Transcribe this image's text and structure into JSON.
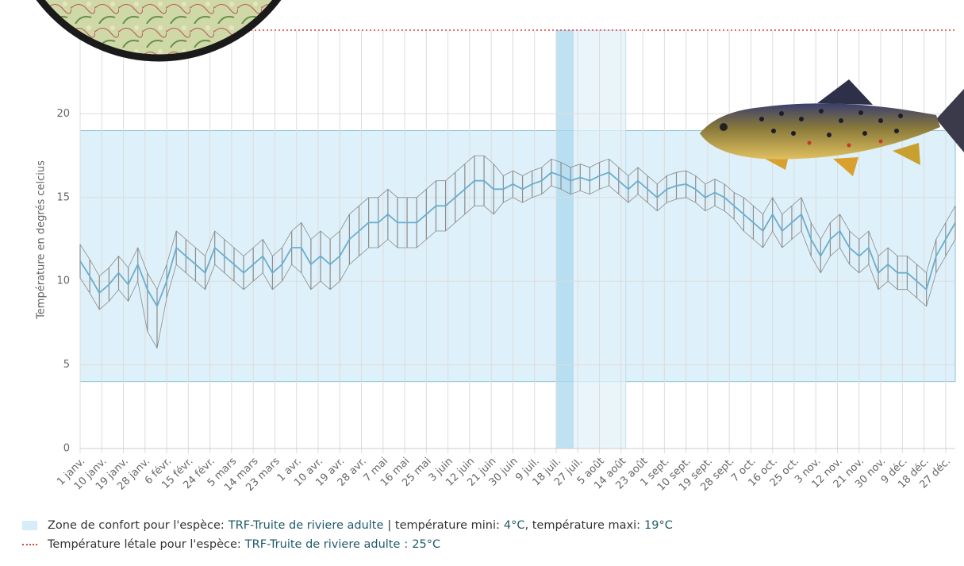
{
  "chart_data": {
    "type": "line",
    "y_label": "Température en degrés celcius",
    "xlim": [
      0,
      364
    ],
    "ylim": [
      0,
      25
    ],
    "yticks": [
      0,
      5,
      10,
      15,
      20
    ],
    "grid": true,
    "xticks": [
      {
        "value": 0,
        "label": "1 janv."
      },
      {
        "value": 9,
        "label": "10 janv."
      },
      {
        "value": 18,
        "label": "19 janv."
      },
      {
        "value": 27,
        "label": "28 janv."
      },
      {
        "value": 36,
        "label": "6 févr."
      },
      {
        "value": 45,
        "label": "15 févr."
      },
      {
        "value": 54,
        "label": "24 févr."
      },
      {
        "value": 63,
        "label": "5 mars"
      },
      {
        "value": 72,
        "label": "14 mars"
      },
      {
        "value": 81,
        "label": "23 mars"
      },
      {
        "value": 90,
        "label": "1 avr."
      },
      {
        "value": 99,
        "label": "10 avr."
      },
      {
        "value": 108,
        "label": "19 avr."
      },
      {
        "value": 117,
        "label": "28 avr."
      },
      {
        "value": 126,
        "label": "7 mai"
      },
      {
        "value": 135,
        "label": "16 mai"
      },
      {
        "value": 144,
        "label": "25 mai"
      },
      {
        "value": 153,
        "label": "3 juin"
      },
      {
        "value": 162,
        "label": "12 juin"
      },
      {
        "value": 171,
        "label": "21 juin"
      },
      {
        "value": 180,
        "label": "30 juin"
      },
      {
        "value": 189,
        "label": "9 juil."
      },
      {
        "value": 198,
        "label": "18 juil."
      },
      {
        "value": 207,
        "label": "27 juil."
      },
      {
        "value": 216,
        "label": "5 août"
      },
      {
        "value": 225,
        "label": "14 août"
      },
      {
        "value": 234,
        "label": "23 août"
      },
      {
        "value": 243,
        "label": "1 sept."
      },
      {
        "value": 252,
        "label": "10 sept."
      },
      {
        "value": 261,
        "label": "19 sept."
      },
      {
        "value": 270,
        "label": "28 sept."
      },
      {
        "value": 279,
        "label": "7 oct."
      },
      {
        "value": 288,
        "label": "16 oct."
      },
      {
        "value": 297,
        "label": "25 oct."
      },
      {
        "value": 306,
        "label": "3 nov."
      },
      {
        "value": 315,
        "label": "12 nov."
      },
      {
        "value": 324,
        "label": "21 nov."
      },
      {
        "value": 333,
        "label": "30 nov."
      },
      {
        "value": 342,
        "label": "9 déc."
      },
      {
        "value": 351,
        "label": "18 déc."
      },
      {
        "value": 360,
        "label": "27 déc."
      }
    ],
    "x": [
      0,
      4,
      8,
      12,
      16,
      20,
      24,
      28,
      32,
      36,
      40,
      44,
      48,
      52,
      56,
      60,
      64,
      68,
      72,
      76,
      80,
      84,
      88,
      92,
      96,
      100,
      104,
      108,
      112,
      116,
      120,
      124,
      128,
      132,
      136,
      140,
      144,
      148,
      152,
      156,
      160,
      164,
      168,
      172,
      176,
      180,
      184,
      188,
      192,
      196,
      200,
      204,
      208,
      212,
      216,
      220,
      224,
      228,
      232,
      236,
      240,
      244,
      248,
      252,
      256,
      260,
      264,
      268,
      272,
      276,
      280,
      284,
      288,
      292,
      296,
      300,
      304,
      308,
      312,
      316,
      320,
      324,
      328,
      332,
      336,
      340,
      344,
      348,
      352,
      356,
      360,
      364
    ],
    "range_color": "#8c8c8c",
    "max": [
      12.2,
      11.3,
      10.3,
      10.8,
      11.5,
      10.8,
      12,
      10.5,
      9.5,
      11,
      13,
      12.5,
      12,
      11.5,
      13,
      12.5,
      12,
      11.5,
      12,
      12.5,
      11.5,
      12,
      13,
      13.5,
      12.5,
      13,
      12.5,
      13,
      14,
      14.5,
      15,
      15,
      15.5,
      15,
      15,
      15,
      15.5,
      16,
      16,
      16.5,
      17,
      17.5,
      17.5,
      17,
      16.3,
      16.6,
      16.3,
      16.6,
      16.8,
      17.3,
      17.1,
      16.8,
      17,
      16.8,
      17.1,
      17.3,
      16.8,
      16.3,
      16.8,
      16.3,
      15.8,
      16.3,
      16.5,
      16.6,
      16.3,
      15.8,
      16.1,
      15.8,
      15.3,
      15,
      14.5,
      14,
      15,
      14,
      14.5,
      15,
      13.5,
      12.5,
      13.5,
      14,
      13,
      12.5,
      13,
      11.5,
      12,
      11.5,
      11.5,
      11,
      10.5,
      12.5,
      13.5,
      14.5
    ],
    "min": [
      10.2,
      9.3,
      8.3,
      8.8,
      9.5,
      8.8,
      10,
      7,
      6,
      9,
      11,
      10.5,
      10,
      9.5,
      11,
      10.5,
      10,
      9.5,
      10,
      10.5,
      9.5,
      10,
      11,
      10.5,
      9.5,
      10,
      9.5,
      10,
      11,
      11.5,
      12,
      12,
      12.5,
      12,
      12,
      12,
      12.5,
      13,
      13,
      13.5,
      14,
      14.5,
      14.5,
      14,
      14.7,
      15,
      14.7,
      15,
      15.2,
      15.7,
      15.5,
      15.2,
      15.4,
      15.2,
      15.5,
      15.7,
      15.2,
      14.7,
      15.2,
      14.7,
      14.2,
      14.7,
      14.9,
      15,
      14.7,
      14.2,
      14.5,
      14.2,
      13.7,
      13,
      12.5,
      12,
      13,
      12,
      12.5,
      13,
      11.5,
      10.5,
      11.5,
      12,
      11,
      10.5,
      11,
      9.5,
      10,
      9.5,
      9.5,
      9,
      8.5,
      10.5,
      11.5,
      12.5
    ],
    "mean_color": "#6aaecf",
    "mean": [
      11.2,
      10.3,
      9.3,
      9.8,
      10.5,
      9.8,
      11,
      9.5,
      8.5,
      10,
      12,
      11.5,
      11,
      10.5,
      12,
      11.5,
      11,
      10.5,
      11,
      11.5,
      10.5,
      11,
      12,
      12,
      11,
      11.5,
      11,
      11.5,
      12.5,
      13,
      13.5,
      13.5,
      14,
      13.5,
      13.5,
      13.5,
      14,
      14.5,
      14.5,
      15,
      15.5,
      16,
      16,
      15.5,
      15.5,
      15.8,
      15.5,
      15.8,
      16,
      16.5,
      16.3,
      16,
      16.2,
      16,
      16.3,
      16.5,
      16,
      15.5,
      16,
      15.5,
      15,
      15.5,
      15.7,
      15.8,
      15.5,
      15,
      15.3,
      15,
      14.5,
      14,
      13.5,
      13,
      14,
      13,
      13.5,
      14,
      12.5,
      11.5,
      12.5,
      13,
      12,
      11.5,
      12,
      10.5,
      11,
      10.5,
      10.5,
      10,
      9.5,
      11.5,
      12.5,
      13.5
    ],
    "highlights": [
      {
        "start": 198,
        "end": 205,
        "color": "#a9d8ee"
      },
      {
        "start": 205,
        "end": 227,
        "color": "#e2f2f9"
      }
    ],
    "comfort_zone": {
      "label": "Zone de confort pour l'espèce:",
      "species": "TRF-Truite de riviere adulte",
      "min_text": "| température mini:",
      "min": 4,
      "min_label": "4°C",
      "max_text": ", température maxi:",
      "max": 19,
      "max_label": "19°C",
      "color": "#d6ecf8",
      "border": "#8fc2dc"
    },
    "lethal": {
      "label": "Température létale pour l'espèce:",
      "species": "TRF-Truite de riviere adulte",
      "sep": ":",
      "value": 25,
      "value_label": "25°C",
      "color": "#e03c3c"
    }
  }
}
